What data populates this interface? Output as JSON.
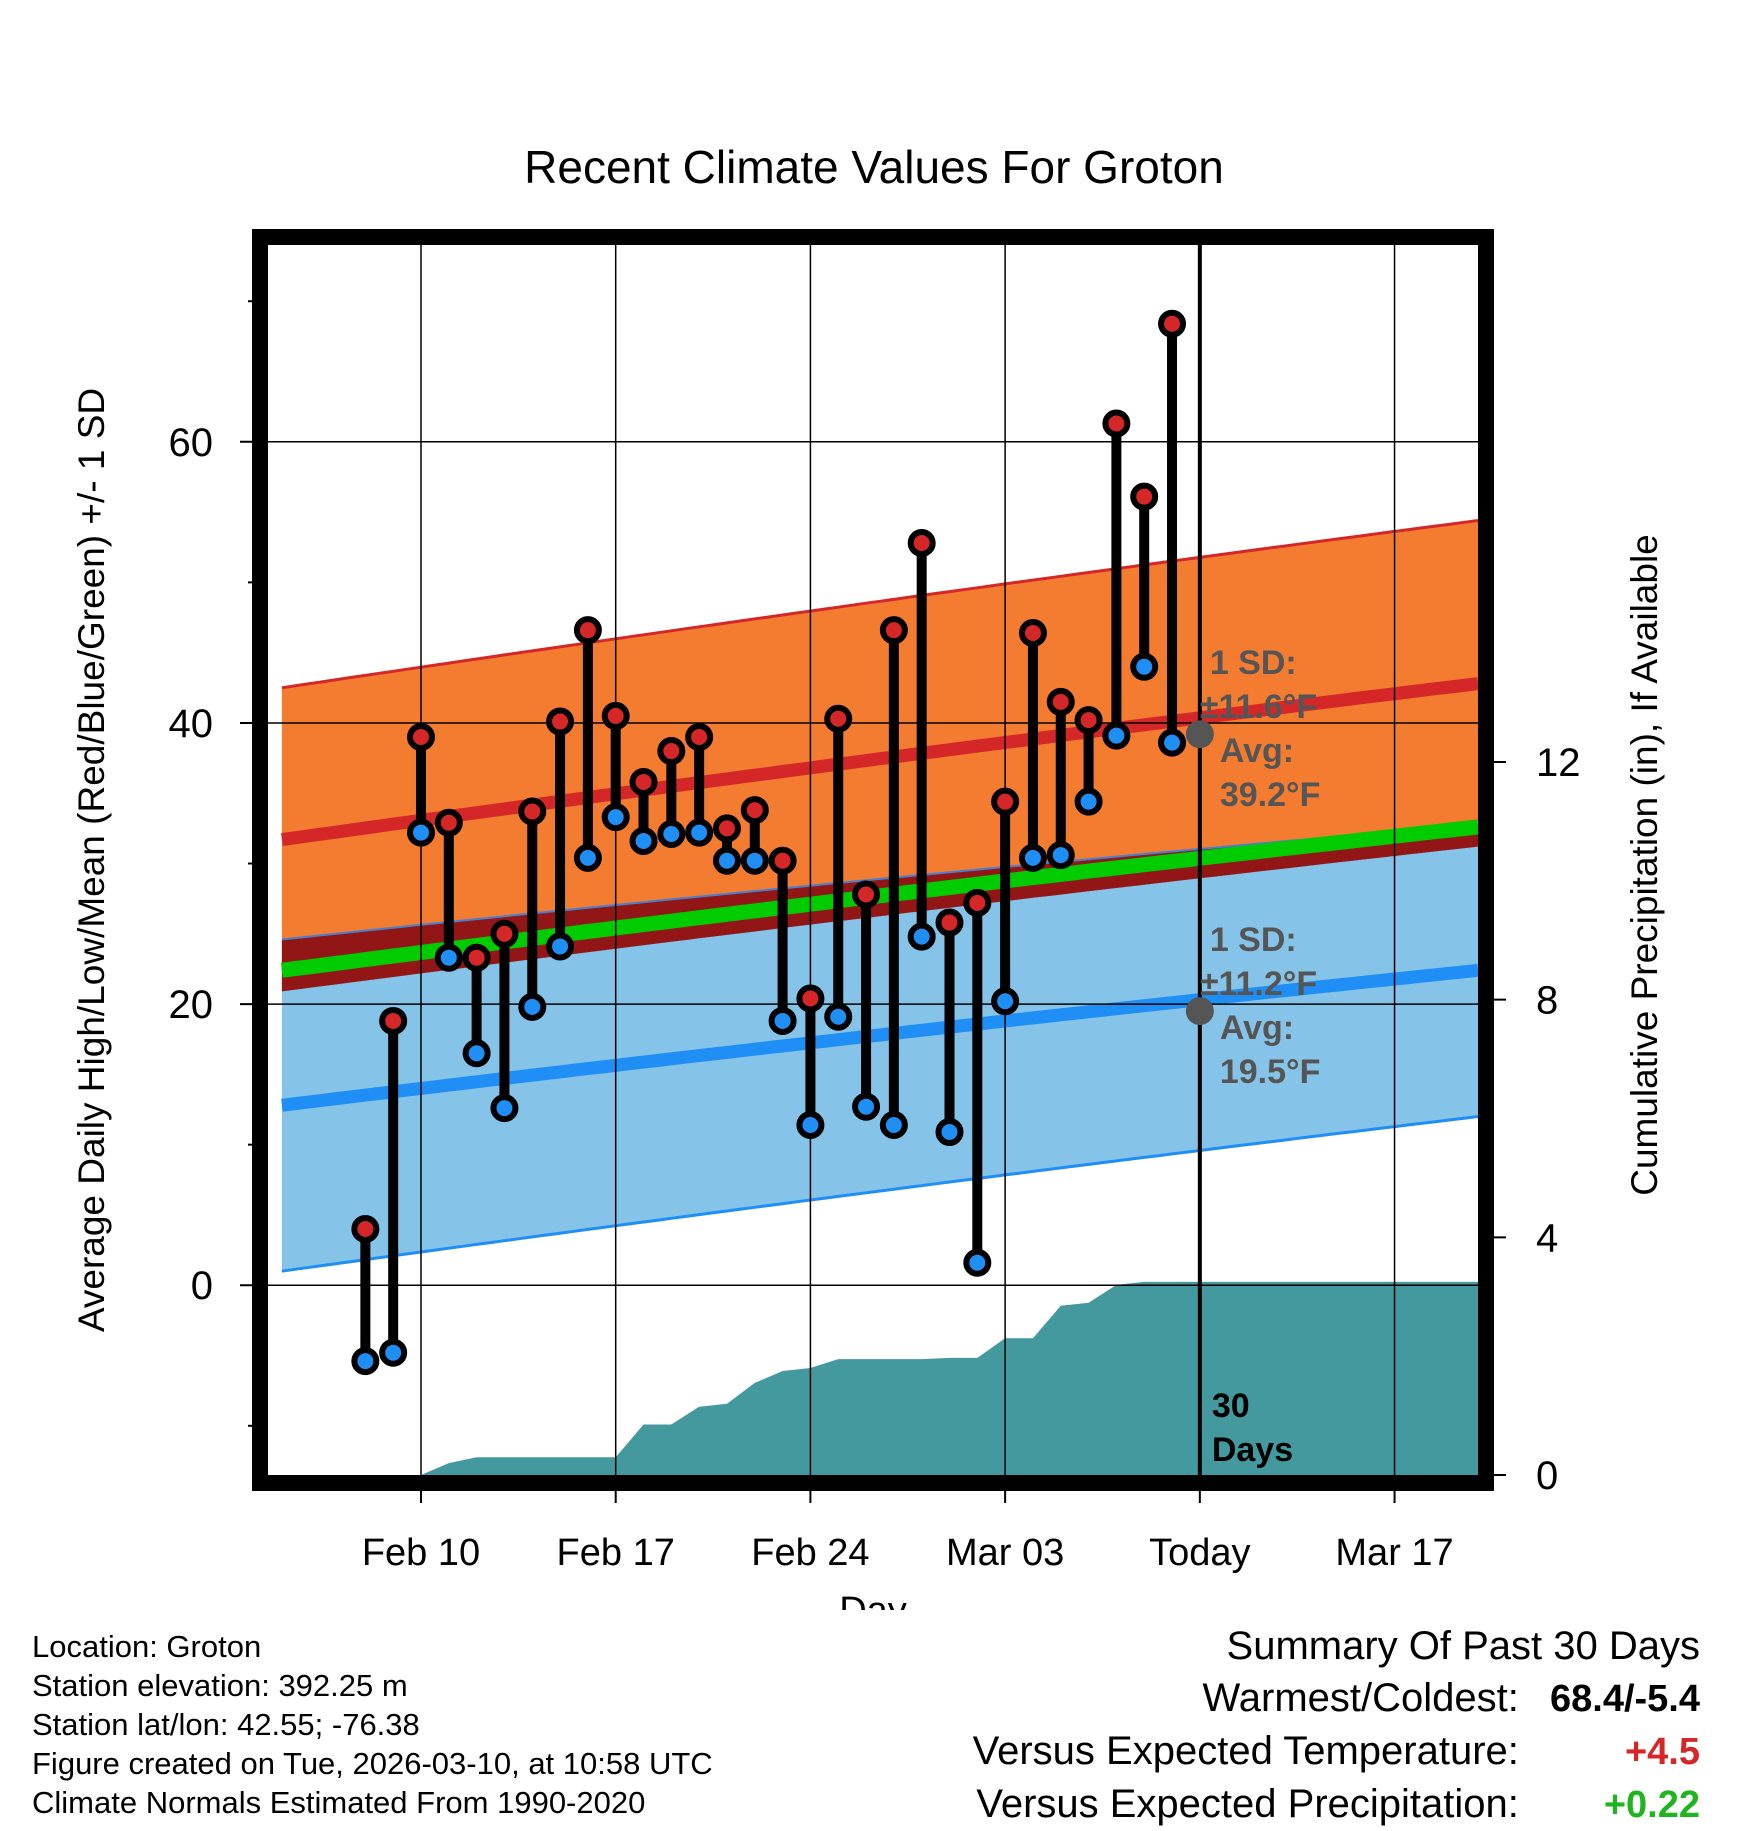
{
  "title": "Recent Climate Values For Groton",
  "chart_data": {
    "type": "line",
    "title": "Recent Climate Values For Groton",
    "xlabel": "Day",
    "ylabel_left": "Average Daily High/Low/Mean (Red/Blue/Green) +/- 1 SD",
    "ylabel_right": "Cumulative Precipitation (in), If Available",
    "x_range_days": [
      -33.5,
      10
    ],
    "y_left_range": [
      -13.5,
      74
    ],
    "y_right_range": [
      0,
      20.7
    ],
    "x_ticks": [
      {
        "day": -28,
        "label": "Feb 10"
      },
      {
        "day": -21,
        "label": "Feb 17"
      },
      {
        "day": -14,
        "label": "Feb 24"
      },
      {
        "day": -7,
        "label": "Mar 03"
      },
      {
        "day": 0,
        "label": "Today"
      },
      {
        "day": 7,
        "label": "Mar 17"
      }
    ],
    "y_left_ticks": [
      0,
      20,
      40,
      60
    ],
    "y_right_ticks": [
      0,
      4,
      8,
      12
    ],
    "today_label": "30\nDays",
    "normals": {
      "day": [
        -33,
        10
      ],
      "high_avg": [
        31.7,
        42.8
      ],
      "high_sd": [
        10.8,
        11.6
      ],
      "low_avg": [
        12.8,
        22.4
      ],
      "low_sd": [
        11.8,
        10.4
      ],
      "mean_avg": [
        22.4,
        32.6
      ]
    },
    "annot_high": {
      "day": 0,
      "value": 39.2,
      "lines": [
        "1 SD:",
        "±11.6°F",
        "Avg:",
        "39.2°F"
      ]
    },
    "annot_low": {
      "day": 0,
      "value": 19.5,
      "lines": [
        "1 SD:",
        "±11.2°F",
        "Avg:",
        "19.5°F"
      ]
    },
    "observations": [
      {
        "day": -30,
        "high": 4.0,
        "low": -5.4
      },
      {
        "day": -29,
        "high": 18.8,
        "low": -4.8
      },
      {
        "day": -28,
        "high": 39.0,
        "low": 32.2
      },
      {
        "day": -27,
        "high": 32.9,
        "low": 23.3
      },
      {
        "day": -26,
        "high": 23.3,
        "low": 16.5
      },
      {
        "day": -25,
        "high": 25.0,
        "low": 12.6
      },
      {
        "day": -24,
        "high": 33.7,
        "low": 19.8
      },
      {
        "day": -23,
        "high": 40.1,
        "low": 24.1
      },
      {
        "day": -22,
        "high": 46.6,
        "low": 30.4
      },
      {
        "day": -21,
        "high": 40.5,
        "low": 33.3
      },
      {
        "day": -20,
        "high": 35.8,
        "low": 31.6
      },
      {
        "day": -19,
        "high": 38.0,
        "low": 32.1
      },
      {
        "day": -18,
        "high": 39.0,
        "low": 32.2
      },
      {
        "day": -17,
        "high": 32.5,
        "low": 30.2
      },
      {
        "day": -16,
        "high": 33.8,
        "low": 30.2
      },
      {
        "day": -15,
        "high": 30.2,
        "low": 18.8
      },
      {
        "day": -14,
        "high": 20.4,
        "low": 11.4
      },
      {
        "day": -13,
        "high": 40.3,
        "low": 19.1
      },
      {
        "day": -12,
        "high": 27.8,
        "low": 12.7
      },
      {
        "day": -11,
        "high": 46.6,
        "low": 11.4
      },
      {
        "day": -10,
        "high": 52.8,
        "low": 24.8
      },
      {
        "day": -9,
        "high": 25.8,
        "low": 10.9
      },
      {
        "day": -8,
        "high": 27.2,
        "low": 1.6
      },
      {
        "day": -7,
        "high": 34.4,
        "low": 20.2
      },
      {
        "day": -6,
        "high": 46.4,
        "low": 30.4
      },
      {
        "day": -5,
        "high": 41.5,
        "low": 30.6
      },
      {
        "day": -4,
        "high": 40.2,
        "low": 34.4
      },
      {
        "day": -3,
        "high": 61.3,
        "low": 39.1
      },
      {
        "day": -2,
        "high": 56.1,
        "low": 44.0
      },
      {
        "day": -1,
        "high": 68.4,
        "low": 38.6
      }
    ],
    "precip_cumulative": [
      {
        "day": -30,
        "value": 0
      },
      {
        "day": -29,
        "value": 0
      },
      {
        "day": -28,
        "value": 0
      },
      {
        "day": -27,
        "value": 0.2
      },
      {
        "day": -26,
        "value": 0.3
      },
      {
        "day": -25,
        "value": 0.3
      },
      {
        "day": -24,
        "value": 0.3
      },
      {
        "day": -23,
        "value": 0.3
      },
      {
        "day": -22,
        "value": 0.3
      },
      {
        "day": -21,
        "value": 0.3
      },
      {
        "day": -20,
        "value": 0.85
      },
      {
        "day": -19,
        "value": 0.85
      },
      {
        "day": -18,
        "value": 1.15
      },
      {
        "day": -17,
        "value": 1.2
      },
      {
        "day": -16,
        "value": 1.55
      },
      {
        "day": -15,
        "value": 1.75
      },
      {
        "day": -14,
        "value": 1.8
      },
      {
        "day": -13,
        "value": 1.95
      },
      {
        "day": -12,
        "value": 1.95
      },
      {
        "day": -11,
        "value": 1.95
      },
      {
        "day": -10,
        "value": 1.95
      },
      {
        "day": -9,
        "value": 1.97
      },
      {
        "day": -8,
        "value": 1.97
      },
      {
        "day": -7,
        "value": 2.3
      },
      {
        "day": -6,
        "value": 2.3
      },
      {
        "day": -5,
        "value": 2.85
      },
      {
        "day": -4,
        "value": 2.9
      },
      {
        "day": -3,
        "value": 3.2
      },
      {
        "day": -2,
        "value": 3.25
      },
      {
        "day": -1,
        "value": 3.25
      },
      {
        "day": 0,
        "value": 3.25
      },
      {
        "day": 10,
        "value": 3.25
      }
    ],
    "colors": {
      "high_band": "#f47c30",
      "high_line": "#d62728",
      "low_band": "#85c3e8",
      "low_line": "#1f8ef5",
      "mean_line": "#00cc00",
      "overlap": "#921616",
      "precip": "#44999f",
      "high_dot": "#d62728",
      "low_dot": "#1f8ef5",
      "annot": "#555555"
    }
  },
  "footer": {
    "location": "Location: Groton",
    "elevation": "Station elevation: 392.25 m",
    "latlon": "Station lat/lon: 42.55; -76.38",
    "created": "Figure created on Tue, 2026-03-10, at 10:58 UTC",
    "normals": "Climate Normals Estimated From 1990-2020"
  },
  "summary": {
    "heading": "Summary Of Past 30 Days",
    "warmest_coldest_label": "Warmest/Coldest:",
    "warmest_coldest_value": "68.4/-5.4",
    "temp_label": "Versus Expected Temperature:",
    "temp_value": "+4.5",
    "precip_label": "Versus Expected Precipitation:",
    "precip_value": "+0.22"
  }
}
